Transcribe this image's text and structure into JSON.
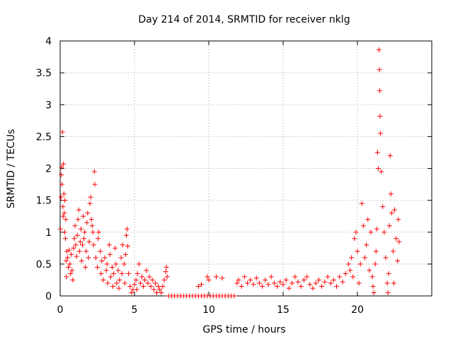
{
  "chart_data": {
    "type": "scatter",
    "title": "Day 214 of 2014, SRMTID for receiver nklg",
    "xlabel": "GPS time / hours",
    "ylabel": "SRMTID / TECUs",
    "xlim": [
      0,
      25
    ],
    "ylim": [
      0,
      4
    ],
    "x_ticks": [
      0,
      5,
      10,
      15,
      20
    ],
    "x_tick_labels": [
      "0",
      "5",
      "10",
      "15",
      "20"
    ],
    "y_ticks": [
      0,
      0.5,
      1,
      1.5,
      2,
      2.5,
      3,
      3.5,
      4
    ],
    "y_tick_labels": [
      "0",
      "0.5",
      "1",
      "1.5",
      "2",
      "2.5",
      "3",
      "3.5",
      "4"
    ],
    "grid": true,
    "marker": "+",
    "series": [
      {
        "name": "SRMTID",
        "color": "#ff0000",
        "points": [
          [
            0.02,
            1.05
          ],
          [
            0.05,
            1.55
          ],
          [
            0.08,
            1.9
          ],
          [
            0.1,
            2.02
          ],
          [
            0.12,
            1.75
          ],
          [
            0.15,
            2.57
          ],
          [
            0.18,
            1.4
          ],
          [
            0.2,
            1.25
          ],
          [
            0.22,
            2.07
          ],
          [
            0.25,
            1.6
          ],
          [
            0.28,
            1.3
          ],
          [
            0.3,
            1.0
          ],
          [
            0.32,
            1.5
          ],
          [
            0.35,
            0.9
          ],
          [
            0.38,
            1.2
          ],
          [
            0.4,
            0.55
          ],
          [
            0.42,
            0.3
          ],
          [
            0.45,
            0.7
          ],
          [
            0.5,
            0.6
          ],
          [
            0.55,
            0.45
          ],
          [
            0.6,
            0.72
          ],
          [
            0.65,
            0.5
          ],
          [
            0.7,
            0.35
          ],
          [
            0.75,
            0.65
          ],
          [
            0.8,
            0.4
          ],
          [
            0.85,
            0.25
          ],
          [
            0.9,
            0.75
          ],
          [
            0.95,
            0.9
          ],
          [
            1.0,
            1.1
          ],
          [
            1.05,
            0.8
          ],
          [
            1.1,
            0.62
          ],
          [
            1.15,
            0.95
          ],
          [
            1.2,
            1.2
          ],
          [
            1.25,
            1.35
          ],
          [
            1.3,
            0.7
          ],
          [
            1.35,
            0.85
          ],
          [
            1.4,
            1.05
          ],
          [
            1.45,
            0.55
          ],
          [
            1.5,
            0.8
          ],
          [
            1.55,
            1.25
          ],
          [
            1.6,
            0.9
          ],
          [
            1.65,
            1.0
          ],
          [
            1.7,
            0.45
          ],
          [
            1.75,
            0.7
          ],
          [
            1.8,
            1.15
          ],
          [
            1.85,
            1.3
          ],
          [
            1.9,
            0.6
          ],
          [
            1.95,
            0.85
          ],
          [
            2.0,
            1.45
          ],
          [
            2.05,
            1.55
          ],
          [
            2.1,
            1.2
          ],
          [
            2.15,
            1.1
          ],
          [
            2.2,
            1.0
          ],
          [
            2.25,
            0.8
          ],
          [
            2.3,
            1.95
          ],
          [
            2.33,
            1.75
          ],
          [
            2.4,
            0.6
          ],
          [
            2.5,
            0.45
          ],
          [
            2.55,
            0.9
          ],
          [
            2.6,
            1.0
          ],
          [
            2.7,
            0.7
          ],
          [
            2.75,
            0.35
          ],
          [
            2.8,
            0.55
          ],
          [
            2.9,
            0.25
          ],
          [
            3.0,
            0.6
          ],
          [
            3.1,
            0.4
          ],
          [
            3.15,
            0.5
          ],
          [
            3.2,
            0.2
          ],
          [
            3.3,
            0.8
          ],
          [
            3.35,
            0.65
          ],
          [
            3.4,
            0.3
          ],
          [
            3.5,
            0.45
          ],
          [
            3.55,
            0.15
          ],
          [
            3.6,
            0.35
          ],
          [
            3.7,
            0.75
          ],
          [
            3.75,
            0.5
          ],
          [
            3.8,
            0.2
          ],
          [
            3.9,
            0.4
          ],
          [
            3.95,
            0.12
          ],
          [
            4.0,
            0.25
          ],
          [
            4.1,
            0.6
          ],
          [
            4.15,
            0.35
          ],
          [
            4.2,
            0.8
          ],
          [
            4.3,
            0.5
          ],
          [
            4.35,
            0.2
          ],
          [
            4.4,
            0.65
          ],
          [
            4.45,
            0.95
          ],
          [
            4.5,
            1.05
          ],
          [
            4.55,
            0.78
          ],
          [
            4.6,
            0.35
          ],
          [
            4.7,
            0.15
          ],
          [
            4.8,
            0.05
          ],
          [
            4.9,
            0.1
          ],
          [
            5.0,
            0.18
          ],
          [
            5.1,
            0.25
          ],
          [
            5.15,
            0.1
          ],
          [
            5.2,
            0.35
          ],
          [
            5.3,
            0.5
          ],
          [
            5.4,
            0.2
          ],
          [
            5.5,
            0.3
          ],
          [
            5.6,
            0.15
          ],
          [
            5.7,
            0.25
          ],
          [
            5.8,
            0.4
          ],
          [
            5.9,
            0.2
          ],
          [
            6.0,
            0.3
          ],
          [
            6.1,
            0.15
          ],
          [
            6.2,
            0.25
          ],
          [
            6.3,
            0.1
          ],
          [
            6.4,
            0.2
          ],
          [
            6.5,
            0.05
          ],
          [
            6.6,
            0.15
          ],
          [
            6.7,
            0.1
          ],
          [
            6.8,
            0.05
          ],
          [
            6.9,
            0.15
          ],
          [
            7.0,
            0.25
          ],
          [
            7.1,
            0.38
          ],
          [
            7.15,
            0.45
          ],
          [
            7.2,
            0.3
          ],
          [
            7.3,
            0.0
          ],
          [
            7.5,
            0.0
          ],
          [
            7.7,
            0.0
          ],
          [
            7.9,
            0.0
          ],
          [
            8.1,
            0.0
          ],
          [
            8.3,
            0.0
          ],
          [
            8.5,
            0.0
          ],
          [
            8.7,
            0.0
          ],
          [
            8.9,
            0.0
          ],
          [
            9.1,
            0.0
          ],
          [
            9.3,
            0.0
          ],
          [
            9.5,
            0.0
          ],
          [
            9.7,
            0.0
          ],
          [
            9.9,
            0.0
          ],
          [
            10.1,
            0.0
          ],
          [
            10.3,
            0.0
          ],
          [
            10.5,
            0.0
          ],
          [
            10.7,
            0.0
          ],
          [
            10.9,
            0.0
          ],
          [
            11.1,
            0.0
          ],
          [
            11.3,
            0.0
          ],
          [
            11.5,
            0.0
          ],
          [
            11.7,
            0.0
          ],
          [
            9.3,
            0.15
          ],
          [
            9.5,
            0.18
          ],
          [
            9.9,
            0.3
          ],
          [
            10.0,
            0.25
          ],
          [
            10.5,
            0.3
          ],
          [
            10.9,
            0.28
          ],
          [
            11.9,
            0.2
          ],
          [
            12.0,
            0.25
          ],
          [
            12.2,
            0.15
          ],
          [
            12.4,
            0.3
          ],
          [
            12.6,
            0.2
          ],
          [
            12.8,
            0.25
          ],
          [
            13.0,
            0.18
          ],
          [
            13.2,
            0.28
          ],
          [
            13.4,
            0.2
          ],
          [
            13.6,
            0.15
          ],
          [
            13.8,
            0.25
          ],
          [
            14.0,
            0.18
          ],
          [
            14.2,
            0.3
          ],
          [
            14.4,
            0.2
          ],
          [
            14.6,
            0.15
          ],
          [
            14.8,
            0.22
          ],
          [
            15.0,
            0.18
          ],
          [
            15.2,
            0.25
          ],
          [
            15.4,
            0.12
          ],
          [
            15.6,
            0.2
          ],
          [
            15.8,
            0.3
          ],
          [
            16.0,
            0.22
          ],
          [
            16.2,
            0.15
          ],
          [
            16.4,
            0.25
          ],
          [
            16.6,
            0.3
          ],
          [
            16.8,
            0.18
          ],
          [
            17.0,
            0.12
          ],
          [
            17.2,
            0.2
          ],
          [
            17.4,
            0.25
          ],
          [
            17.6,
            0.15
          ],
          [
            17.8,
            0.22
          ],
          [
            18.0,
            0.3
          ],
          [
            18.2,
            0.2
          ],
          [
            18.4,
            0.25
          ],
          [
            18.6,
            0.15
          ],
          [
            18.8,
            0.3
          ],
          [
            19.0,
            0.22
          ],
          [
            19.2,
            0.35
          ],
          [
            19.4,
            0.5
          ],
          [
            19.5,
            0.4
          ],
          [
            19.6,
            0.6
          ],
          [
            19.7,
            0.3
          ],
          [
            19.8,
            0.9
          ],
          [
            19.9,
            1.0
          ],
          [
            20.0,
            0.7
          ],
          [
            20.1,
            0.2
          ],
          [
            20.2,
            0.5
          ],
          [
            20.3,
            1.45
          ],
          [
            20.4,
            1.1
          ],
          [
            20.5,
            0.6
          ],
          [
            20.6,
            0.8
          ],
          [
            20.7,
            1.2
          ],
          [
            20.8,
            0.4
          ],
          [
            20.9,
            1.0
          ],
          [
            21.0,
            0.3
          ],
          [
            21.05,
            0.15
          ],
          [
            21.1,
            0.05
          ],
          [
            21.2,
            0.5
          ],
          [
            21.25,
            0.7
          ],
          [
            21.3,
            1.05
          ],
          [
            21.35,
            2.25
          ],
          [
            21.4,
            2.0
          ],
          [
            21.45,
            3.86
          ],
          [
            21.48,
            3.55
          ],
          [
            21.5,
            3.22
          ],
          [
            21.52,
            2.82
          ],
          [
            21.55,
            2.55
          ],
          [
            21.6,
            1.95
          ],
          [
            21.7,
            1.4
          ],
          [
            21.8,
            1.0
          ],
          [
            21.9,
            0.6
          ],
          [
            22.0,
            0.2
          ],
          [
            22.05,
            0.05
          ],
          [
            22.1,
            0.35
          ],
          [
            22.15,
            1.1
          ],
          [
            22.2,
            2.2
          ],
          [
            22.25,
            1.6
          ],
          [
            22.3,
            1.3
          ],
          [
            22.4,
            0.7
          ],
          [
            22.45,
            0.2
          ],
          [
            22.5,
            1.35
          ],
          [
            22.6,
            0.9
          ],
          [
            22.7,
            0.55
          ],
          [
            22.75,
            1.2
          ],
          [
            22.8,
            0.85
          ]
        ]
      }
    ]
  }
}
